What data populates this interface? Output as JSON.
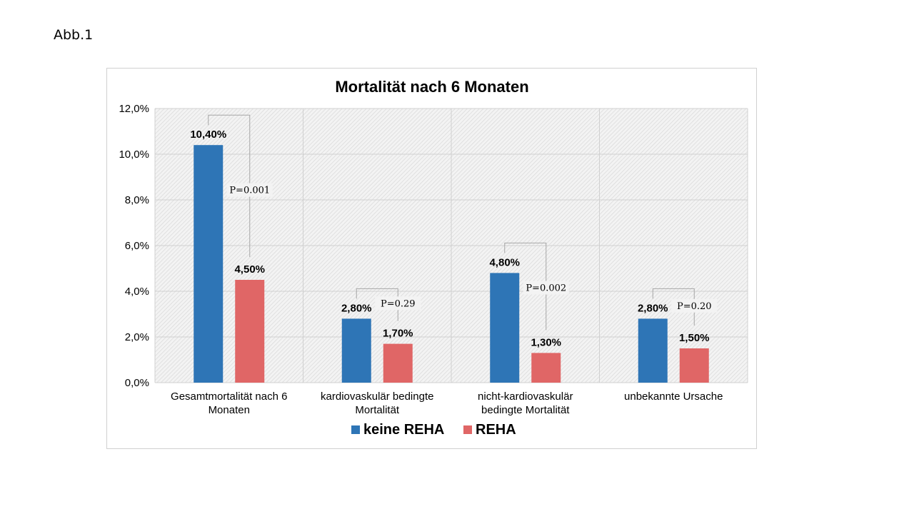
{
  "figure_label": "Abb.1",
  "chart_data": {
    "type": "bar",
    "title": "Mortalität nach 6 Monaten",
    "categories": [
      [
        "Gesamtmortalität nach 6",
        "Monaten"
      ],
      [
        "kardiovaskulär bedingte",
        "Mortalität"
      ],
      [
        "nicht-kardiovaskulär",
        "bedingte Mortalität"
      ],
      [
        "unbekannte Ursache"
      ]
    ],
    "series": [
      {
        "name": "keine REHA",
        "color": "#2e75b6",
        "values": [
          10.4,
          2.8,
          4.8,
          2.8
        ],
        "labels": [
          "10,40%",
          "2,80%",
          "4,80%",
          "2,80%"
        ]
      },
      {
        "name": "REHA",
        "color": "#e06666",
        "values": [
          4.5,
          1.7,
          1.3,
          1.5
        ],
        "labels": [
          "4,50%",
          "1,70%",
          "1,30%",
          "1,50%"
        ]
      }
    ],
    "p_values": [
      "P=0.001",
      "P=0.29",
      "P=0.002",
      "P=0.20"
    ],
    "ylim": [
      0,
      12
    ],
    "yticks": [
      0,
      2,
      4,
      6,
      8,
      10,
      12
    ],
    "ytick_labels": [
      "0,0%",
      "2,0%",
      "4,0%",
      "6,0%",
      "8,0%",
      "10,0%",
      "12,0%"
    ],
    "grid": true,
    "legend_position": "bottom"
  }
}
